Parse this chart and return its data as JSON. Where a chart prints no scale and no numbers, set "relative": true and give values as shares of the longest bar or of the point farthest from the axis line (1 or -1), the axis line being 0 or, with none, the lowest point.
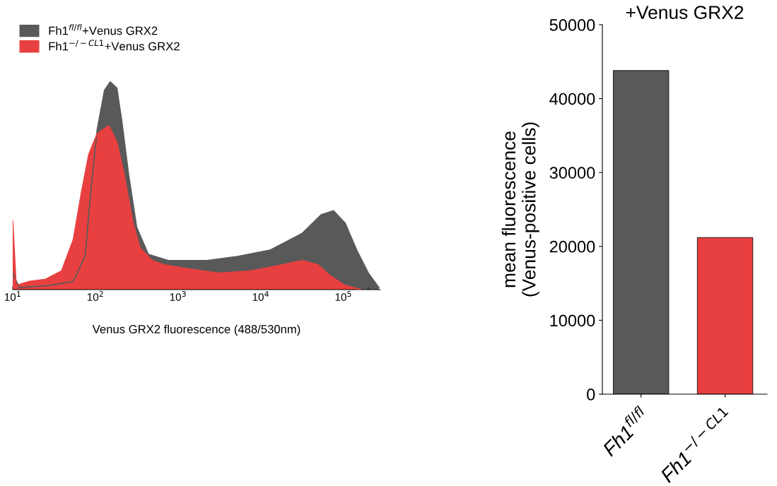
{
  "chart_data": [
    {
      "type": "area",
      "relative": true,
      "log": "x",
      "xlabel": "Venus GRX2 fluorescence (488/530nm)",
      "legend": "top left",
      "xlim": [
        10,
        280000
      ],
      "xticks": [
        {
          "value": 10,
          "label": "10$^{1}$"
        },
        {
          "value": 100,
          "label": "10$^{2}$"
        },
        {
          "value": 1000,
          "label": "10$^{3}$"
        },
        {
          "value": 10000,
          "label": "10$^{4}$"
        },
        {
          "value": 100000,
          "label": "10$^{5}$"
        }
      ],
      "series": [
        {
          "name": "Fh1$^{fl/fl}$+Venus GRX2",
          "color": "#595959",
          "x": [
            10,
            12,
            28,
            54,
            75,
            87,
            105,
            129,
            151,
            182,
            209,
            251,
            316,
            437,
            759,
            2240,
            5370,
            12900,
            31600,
            53700,
            75900,
            105000,
            145000,
            200000,
            269000
          ],
          "values": [
            0.08,
            0.01,
            0.02,
            0.04,
            0.16,
            0.45,
            0.77,
            0.96,
            1.0,
            0.97,
            0.81,
            0.56,
            0.3,
            0.17,
            0.14,
            0.14,
            0.16,
            0.19,
            0.27,
            0.36,
            0.38,
            0.32,
            0.19,
            0.08,
            0.01
          ]
        },
        {
          "name": "Fh1$^{−/−CL1}$+Venus GRX2",
          "color": "#e84040",
          "x": [
            10,
            11,
            16,
            25,
            39,
            54,
            68,
            83,
            105,
            145,
            182,
            224,
            282,
            347,
            490,
            676,
            1320,
            3160,
            7590,
            18200,
            31600,
            49000,
            67600,
            105000,
            162000
          ],
          "values": [
            0.33,
            0.02,
            0.04,
            0.05,
            0.09,
            0.24,
            0.47,
            0.65,
            0.75,
            0.79,
            0.71,
            0.55,
            0.33,
            0.2,
            0.14,
            0.12,
            0.1,
            0.08,
            0.09,
            0.12,
            0.14,
            0.12,
            0.07,
            0.02,
            0.0
          ]
        }
      ]
    },
    {
      "type": "bar",
      "title": "+Venus GRX2",
      "ylabel": "mean fluorescence\n(Venus-positive cells)",
      "categories": [
        "Fh1$^{fl/fl}$",
        "Fh1$^{−/−CL1}$"
      ],
      "values": [
        43800,
        21200
      ],
      "colors": [
        "#595959",
        "#e84040"
      ],
      "ylim": [
        0,
        50000
      ],
      "yticks": [
        0,
        10000,
        20000,
        30000,
        40000,
        50000
      ]
    }
  ]
}
